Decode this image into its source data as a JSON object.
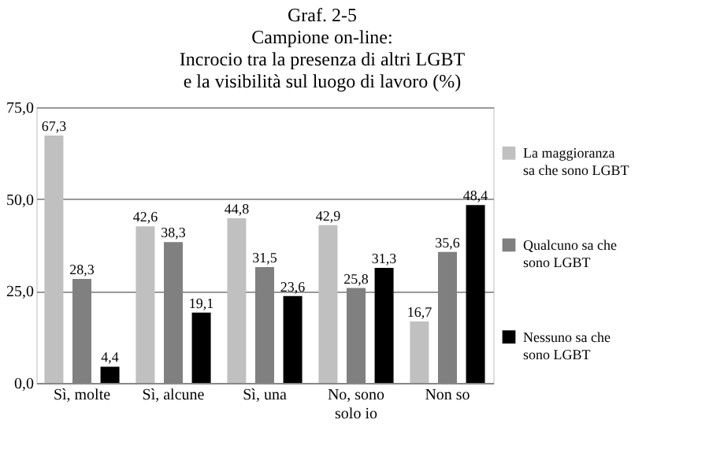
{
  "chart_data": {
    "type": "bar",
    "title": [
      "Graf. 2-5",
      "Campione on-line:",
      "Incrocio tra la presenza di altri LGBT",
      "e la visibilità sul luogo di lavoro (%)"
    ],
    "categories": [
      "Sì, molte",
      "Sì, alcune",
      "Sì, una",
      "No, sono solo io",
      "Non so"
    ],
    "series": [
      {
        "name": "La maggioranza sa che sono LGBT",
        "color": "#c0c0c0",
        "values": [
          67.3,
          42.6,
          44.8,
          42.9,
          16.7
        ],
        "value_labels": [
          "67,3",
          "42,6",
          "44,8",
          "42,9",
          "16,7"
        ]
      },
      {
        "name": "Qualcuno sa che sono LGBT",
        "color": "#808080",
        "values": [
          28.3,
          38.3,
          31.5,
          25.8,
          35.6
        ],
        "value_labels": [
          "28,3",
          "38,3",
          "31,5",
          "25,8",
          "35,6"
        ]
      },
      {
        "name": "Nessuno sa che sono LGBT",
        "color": "#000000",
        "values": [
          4.4,
          19.1,
          23.6,
          31.3,
          48.4
        ],
        "value_labels": [
          "4,4",
          "19,1",
          "23,6",
          "31,3",
          "48,4"
        ]
      }
    ],
    "ylim": [
      0,
      75
    ],
    "yticks": [
      {
        "value": 0,
        "label": "0,0"
      },
      {
        "value": 25,
        "label": "25,0"
      },
      {
        "value": 50,
        "label": "50,0"
      },
      {
        "value": 75,
        "label": "75,0"
      }
    ],
    "grid": "y",
    "legend": "right"
  }
}
